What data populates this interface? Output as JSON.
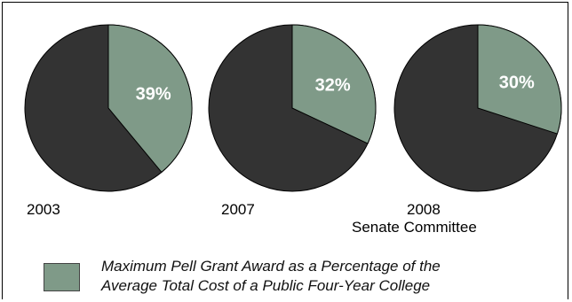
{
  "chart_data": {
    "type": "pie",
    "charts": [
      {
        "label": "2003",
        "sublabel": "",
        "value": 39,
        "value_label": "39%"
      },
      {
        "label": "2007",
        "sublabel": "",
        "value": 32,
        "value_label": "32%"
      },
      {
        "label": "2008",
        "sublabel": "Senate Committee",
        "value": 30,
        "value_label": "30%"
      }
    ],
    "legend": {
      "line1": "Maximum Pell Grant Award as a Percentage of the",
      "line2": "Average Total Cost of a Public Four-Year College",
      "color": "#7f9a88"
    },
    "colors": {
      "highlight": "#7f9a88",
      "remainder": "#333333"
    }
  }
}
